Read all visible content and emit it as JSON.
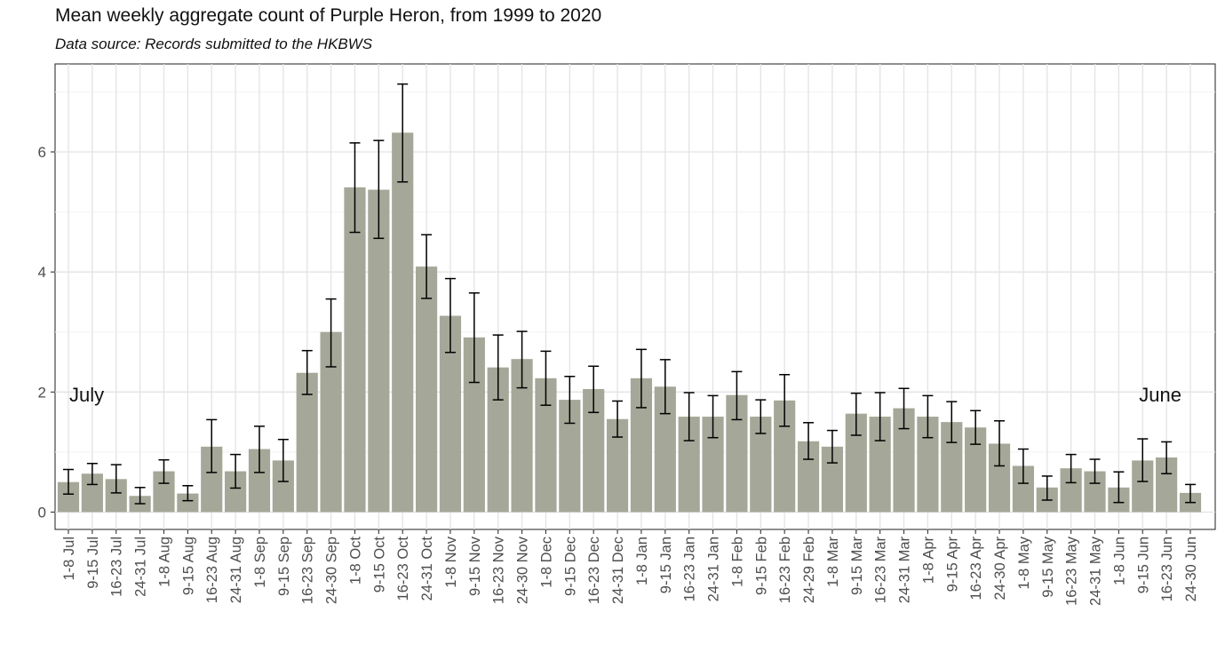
{
  "chart_data": {
    "type": "bar",
    "title": "Mean weekly aggregate count of Purple Heron, from 1999 to 2020",
    "subtitle": "Data source: Records submitted to the HKBWS",
    "xlabel": "",
    "ylabel": "",
    "ylim": [
      0,
      7.2
    ],
    "yticks": [
      0,
      2,
      4,
      6
    ],
    "grid": true,
    "bar_color": "#a5a898",
    "annotations": [
      "July",
      "June"
    ],
    "categories": [
      "1-8 Jul",
      "9-15 Jul",
      "16-23 Jul",
      "24-31 Jul",
      "1-8 Aug",
      "9-15 Aug",
      "16-23 Aug",
      "24-31 Aug",
      "1-8 Sep",
      "9-15 Sep",
      "16-23 Sep",
      "24-30 Sep",
      "1-8 Oct",
      "9-15 Oct",
      "16-23 Oct",
      "24-31 Oct",
      "1-8 Nov",
      "9-15 Nov",
      "16-23 Nov",
      "24-30 Nov",
      "1-8 Dec",
      "9-15 Dec",
      "16-23 Dec",
      "24-31 Dec",
      "1-8 Jan",
      "9-15 Jan",
      "16-23 Jan",
      "24-31 Jan",
      "1-8 Feb",
      "9-15 Feb",
      "16-23 Feb",
      "24-29 Feb",
      "1-8 Mar",
      "9-15 Mar",
      "16-23 Mar",
      "24-31 Mar",
      "1-8 Apr",
      "9-15 Apr",
      "16-23 Apr",
      "24-30 Apr",
      "1-8 May",
      "9-15 May",
      "16-23 May",
      "24-31 May",
      "1-8 Jun",
      "9-15 Jun",
      "16-23 Jun",
      "24-30 Jun"
    ],
    "values": [
      0.5,
      0.64,
      0.55,
      0.27,
      0.68,
      0.31,
      1.09,
      0.68,
      1.05,
      0.86,
      2.32,
      3.0,
      5.41,
      5.37,
      6.32,
      4.09,
      3.27,
      2.91,
      2.41,
      2.55,
      2.23,
      1.87,
      2.05,
      1.55,
      2.23,
      2.09,
      1.59,
      1.59,
      1.95,
      1.59,
      1.86,
      1.18,
      1.09,
      1.64,
      1.59,
      1.73,
      1.59,
      1.5,
      1.41,
      1.14,
      0.77,
      0.41,
      0.73,
      0.68,
      0.41,
      0.86,
      0.91,
      0.32
    ],
    "error_low": [
      0.3,
      0.46,
      0.32,
      0.14,
      0.48,
      0.19,
      0.66,
      0.4,
      0.66,
      0.51,
      1.96,
      2.42,
      4.66,
      4.56,
      5.5,
      3.56,
      2.66,
      2.16,
      1.87,
      2.07,
      1.78,
      1.48,
      1.66,
      1.25,
      1.74,
      1.64,
      1.19,
      1.24,
      1.54,
      1.31,
      1.43,
      0.88,
      0.82,
      1.28,
      1.19,
      1.39,
      1.24,
      1.16,
      1.13,
      0.77,
      0.48,
      0.2,
      0.49,
      0.48,
      0.16,
      0.51,
      0.64,
      0.16
    ],
    "error_high": [
      0.71,
      0.81,
      0.79,
      0.41,
      0.87,
      0.44,
      1.54,
      0.96,
      1.43,
      1.21,
      2.69,
      3.55,
      6.15,
      6.19,
      7.13,
      4.62,
      3.89,
      3.65,
      2.95,
      3.01,
      2.68,
      2.26,
      2.43,
      1.85,
      2.71,
      2.54,
      1.99,
      1.94,
      2.34,
      1.87,
      2.29,
      1.49,
      1.36,
      1.98,
      1.99,
      2.06,
      1.94,
      1.84,
      1.69,
      1.52,
      1.05,
      0.6,
      0.96,
      0.88,
      0.67,
      1.22,
      1.17,
      0.46
    ]
  }
}
